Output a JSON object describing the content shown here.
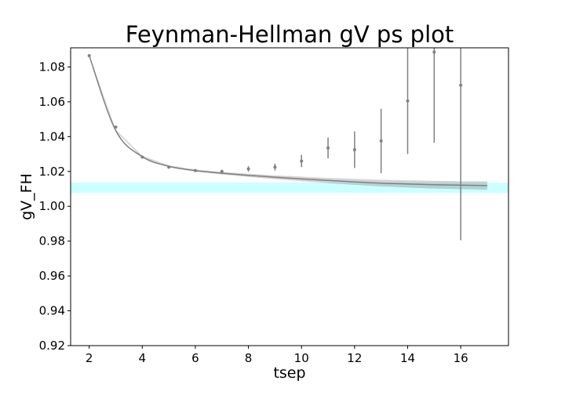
{
  "chart_data": {
    "type": "scatter",
    "title": "Feynman-Hellman gV ps plot",
    "xlabel": "tsep",
    "ylabel": "gV_FH",
    "xlim": [
      1.3,
      17.8
    ],
    "ylim": [
      0.92,
      1.091
    ],
    "xticks": [
      2,
      4,
      6,
      8,
      10,
      12,
      14,
      16
    ],
    "yticks": [
      0.92,
      0.94,
      0.96,
      0.98,
      1.0,
      1.02,
      1.04,
      1.06,
      1.08
    ],
    "ytick_labels": [
      "0.92",
      "0.94",
      "0.96",
      "0.98",
      "1.00",
      "1.02",
      "1.04",
      "1.06",
      "1.08"
    ],
    "grid": false,
    "colors": {
      "data": "#808080",
      "fit": "#808080",
      "band": "#ccffff"
    },
    "series": [
      {
        "kind": "errorbar",
        "x": [
          2,
          3,
          4,
          5,
          6,
          7,
          8,
          9,
          10,
          11,
          12,
          13,
          14,
          15,
          16
        ],
        "y": [
          1.0865,
          1.0455,
          1.0283,
          1.0225,
          1.0205,
          1.02,
          1.0215,
          1.0225,
          1.026,
          1.0335,
          1.0325,
          1.0375,
          1.0605,
          1.0885,
          1.0695
        ],
        "yerr": [
          0.0008,
          0.0005,
          0.0005,
          0.0005,
          0.0006,
          0.001,
          0.0015,
          0.002,
          0.0035,
          0.006,
          0.0105,
          0.0185,
          0.0305,
          0.052,
          0.089
        ]
      },
      {
        "kind": "fit-band",
        "x": [
          2,
          3,
          4,
          5,
          6,
          7,
          8,
          9,
          10,
          11,
          12,
          13,
          14,
          15,
          16,
          17
        ],
        "center": [
          1.0865,
          1.0435,
          1.0285,
          1.023,
          1.0205,
          1.019,
          1.0178,
          1.0167,
          1.0157,
          1.0148,
          1.014,
          1.0133,
          1.0128,
          1.0124,
          1.0121,
          1.0119
        ],
        "halfwidth": [
          0.0006,
          0.0005,
          0.0005,
          0.0005,
          0.0006,
          0.0007,
          0.0009,
          0.0011,
          0.0013,
          0.0015,
          0.0017,
          0.0019,
          0.0021,
          0.0022,
          0.0023,
          0.0024
        ]
      },
      {
        "kind": "horizontal-band",
        "x_range": [
          1.3,
          17.8
        ],
        "y_range": [
          1.0076,
          1.0136
        ]
      }
    ]
  }
}
